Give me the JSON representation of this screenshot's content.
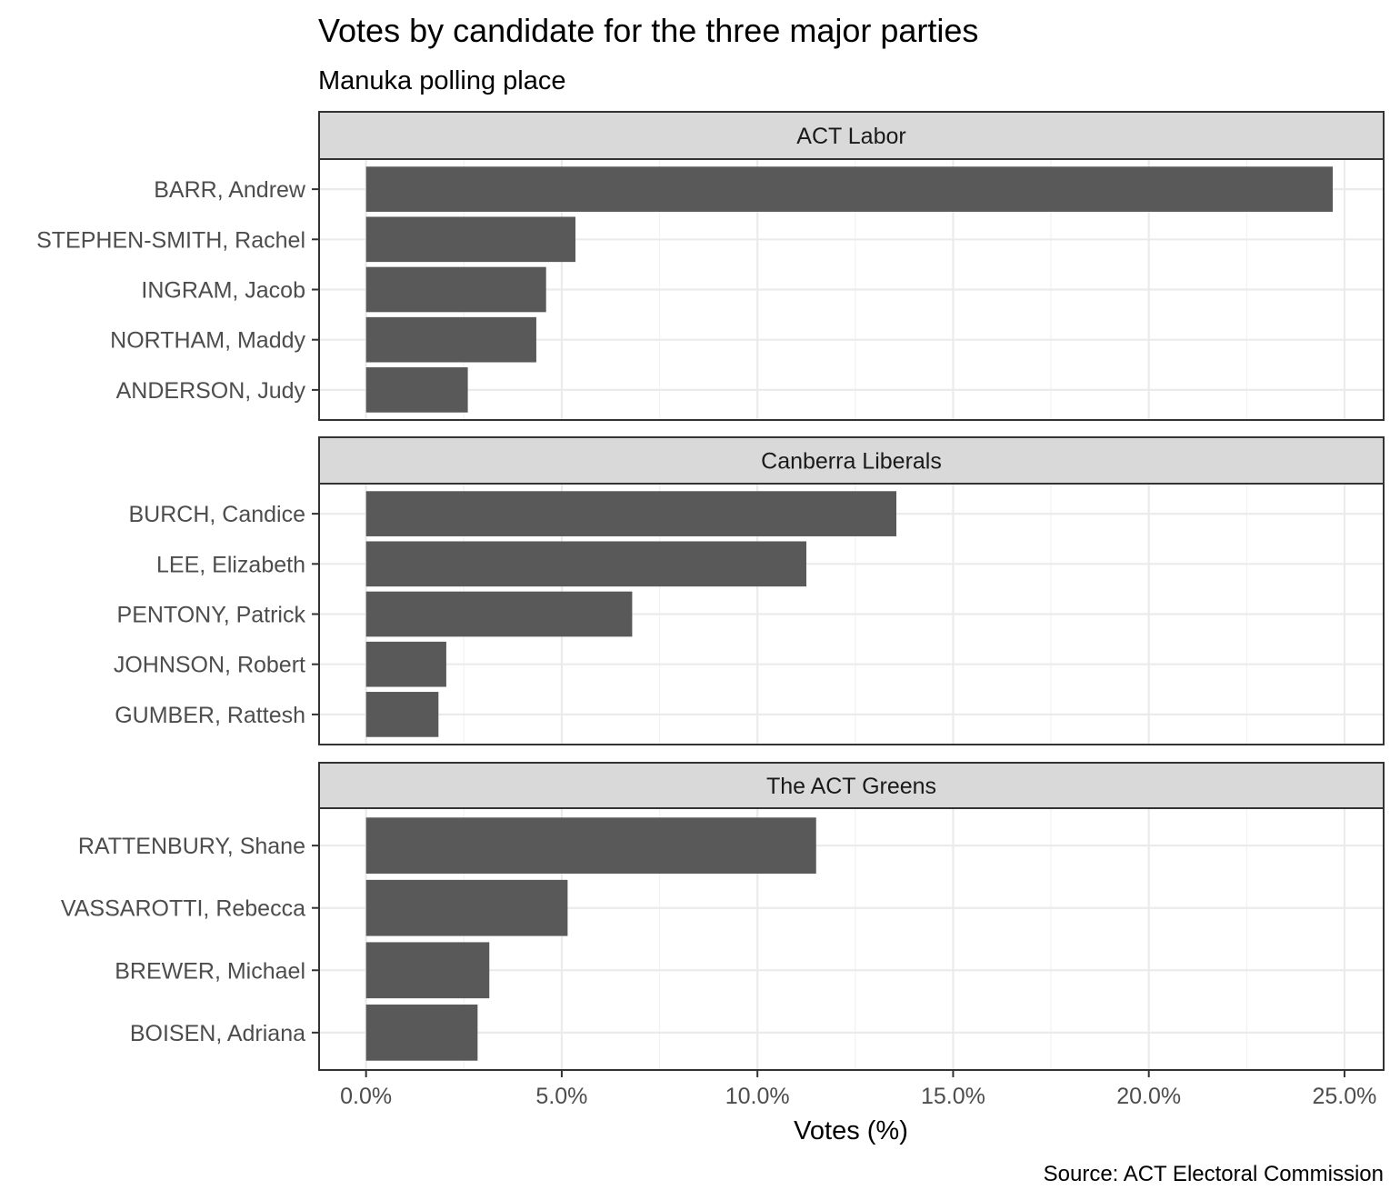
{
  "chart_data": {
    "type": "bar",
    "orientation": "horizontal",
    "title": "Votes by candidate for the three major parties",
    "subtitle": "Manuka polling place",
    "xlabel": "Votes (%)",
    "ylabel": "",
    "caption": "Source: ACT Electoral Commission",
    "xlim": [
      -1.2,
      26.0
    ],
    "xticks": [
      0,
      5,
      10,
      15,
      20,
      25
    ],
    "xtick_labels": [
      "0.0%",
      "5.0%",
      "10.0%",
      "15.0%",
      "20.0%",
      "25.0%"
    ],
    "grid": true,
    "bar_color": "#595959",
    "panels": [
      {
        "name": "ACT Labor",
        "categories": [
          "BARR, Andrew",
          "STEPHEN-SMITH, Rachel",
          "INGRAM, Jacob",
          "NORTHAM, Maddy",
          "ANDERSON, Judy"
        ],
        "values": [
          24.7,
          5.35,
          4.6,
          4.35,
          2.6
        ]
      },
      {
        "name": "Canberra Liberals",
        "categories": [
          "BURCH, Candice",
          "LEE, Elizabeth",
          "PENTONY, Patrick",
          "JOHNSON, Robert",
          "GUMBER, Rattesh"
        ],
        "values": [
          13.55,
          11.25,
          6.8,
          2.05,
          1.85
        ]
      },
      {
        "name": "The ACT Greens",
        "categories": [
          "RATTENBURY, Shane",
          "VASSAROTTI, Rebecca",
          "BREWER, Michael",
          "BOISEN, Adriana"
        ],
        "values": [
          11.5,
          5.15,
          3.15,
          2.85
        ]
      }
    ]
  }
}
